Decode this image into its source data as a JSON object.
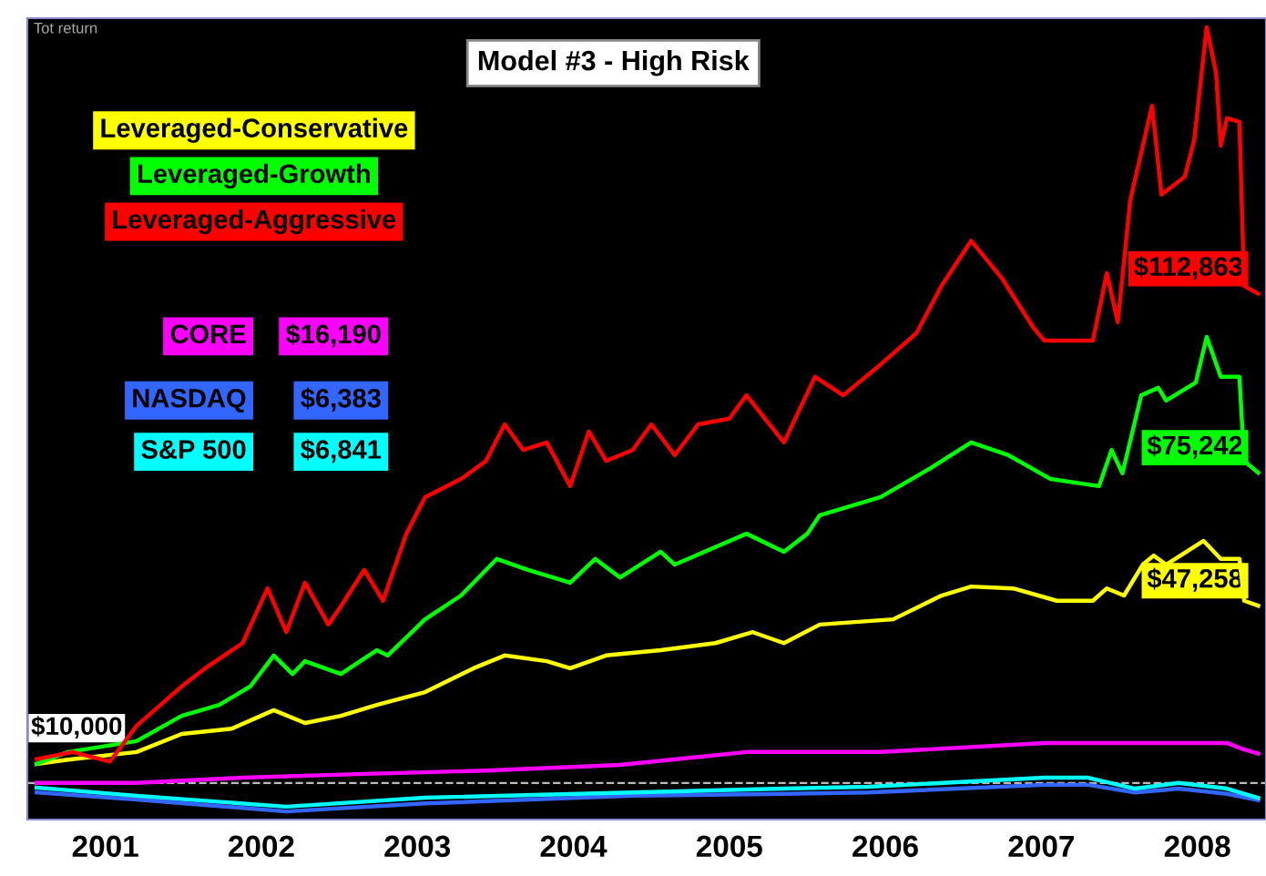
{
  "chart_data": {
    "type": "line",
    "title": "Model #3 - High Risk",
    "annotations": [
      "Tot return",
      "$16,190",
      "$6,383",
      "$6,841"
    ],
    "xlim": [
      2001.0,
      2008.94
    ],
    "ylim": [
      2300,
      170800
    ],
    "tick_labels": "x",
    "legend": "top left",
    "grid": false,
    "marker": "none",
    "line_style": "solid",
    "xticks": [
      {
        "value": 2001.5,
        "label": "2001"
      },
      {
        "value": 2002.5,
        "label": "2002"
      },
      {
        "value": 2003.5,
        "label": "2003"
      },
      {
        "value": 2004.5,
        "label": "2004"
      },
      {
        "value": 2005.5,
        "label": "2005"
      },
      {
        "value": 2006.5,
        "label": "2006"
      },
      {
        "value": 2007.5,
        "label": "2007"
      },
      {
        "value": 2008.5,
        "label": "2008"
      }
    ],
    "ref_lines": [
      {
        "axis": "y",
        "value": 10000,
        "label": "$10,000",
        "color": "#bbbbbb",
        "line_style": "dashed"
      }
    ],
    "series": [
      {
        "name": "Leveraged-Conservative",
        "color": "#ffff00",
        "x": [
          2001.06,
          2001.26,
          2001.7,
          2001.99,
          2002.31,
          2002.58,
          2002.78,
          2003.01,
          2003.24,
          2003.55,
          2003.86,
          2004.06,
          2004.33,
          2004.48,
          2004.71,
          2005.06,
          2005.41,
          2005.65,
          2005.85,
          2006.08,
          2006.55,
          2006.86,
          2007.05,
          2007.32,
          2007.6,
          2007.83,
          2007.92,
          2008.03,
          2008.15,
          2008.22,
          2008.3,
          2008.54,
          2008.65,
          2008.77,
          2008.8,
          2008.89
        ],
        "values": [
          14000,
          14900,
          16500,
          20300,
          21400,
          25300,
          22600,
          24100,
          26400,
          29100,
          34100,
          36800,
          35600,
          34100,
          36800,
          37900,
          39400,
          41700,
          39400,
          43300,
          44400,
          49400,
          51300,
          50900,
          48300,
          48300,
          50900,
          49400,
          55900,
          57800,
          55900,
          60900,
          57100,
          57100,
          48300,
          47258
        ],
        "value_labels": [
          null,
          null,
          null,
          null,
          null,
          null,
          null,
          null,
          null,
          null,
          null,
          null,
          null,
          null,
          null,
          null,
          null,
          null,
          null,
          null,
          null,
          null,
          null,
          null,
          null,
          null,
          null,
          null,
          null,
          null,
          null,
          null,
          null,
          null,
          null,
          "$47,258"
        ]
      },
      {
        "name": "Leveraged-Growth",
        "color": "#00ff00",
        "x": [
          2001.06,
          2001.26,
          2001.7,
          2001.99,
          2002.23,
          2002.43,
          2002.58,
          2002.7,
          2002.78,
          2003.01,
          2003.24,
          2003.31,
          2003.55,
          2003.78,
          2004.01,
          2004.21,
          2004.48,
          2004.64,
          2004.8,
          2005.06,
          2005.15,
          2005.61,
          2005.85,
          2006.0,
          2006.08,
          2006.47,
          2006.79,
          2007.05,
          2007.29,
          2007.56,
          2007.87,
          2007.95,
          2008.02,
          2008.14,
          2008.25,
          2008.3,
          2008.49,
          2008.56,
          2008.65,
          2008.77,
          2008.8,
          2008.89
        ],
        "values": [
          14000,
          16500,
          18800,
          24100,
          26400,
          30300,
          36800,
          32900,
          35600,
          32900,
          37900,
          36800,
          44400,
          49400,
          57100,
          54800,
          52100,
          57100,
          53200,
          58600,
          55900,
          62400,
          58600,
          62400,
          66300,
          70100,
          76200,
          81600,
          78900,
          73900,
          72400,
          80000,
          75100,
          91500,
          93100,
          90400,
          94200,
          103800,
          95400,
          95400,
          77700,
          75242
        ],
        "value_labels": [
          null,
          null,
          null,
          null,
          null,
          null,
          null,
          null,
          null,
          null,
          null,
          null,
          null,
          null,
          null,
          null,
          null,
          null,
          null,
          null,
          null,
          null,
          null,
          null,
          null,
          null,
          null,
          null,
          null,
          null,
          null,
          null,
          null,
          null,
          null,
          null,
          null,
          null,
          null,
          null,
          null,
          "$75,242"
        ]
      },
      {
        "name": "Leveraged-Aggressive",
        "color": "#ff0000",
        "x": [
          2001.06,
          2001.29,
          2001.53,
          2001.7,
          2001.99,
          2002.14,
          2002.38,
          2002.54,
          2002.66,
          2002.78,
          2002.93,
          2003.01,
          2003.16,
          2003.28,
          2003.43,
          2003.55,
          2003.78,
          2003.94,
          2004.06,
          2004.18,
          2004.33,
          2004.48,
          2004.6,
          2004.71,
          2004.88,
          2005.0,
          2005.15,
          2005.3,
          2005.5,
          2005.61,
          2005.85,
          2006.05,
          2006.23,
          2006.47,
          2006.7,
          2006.86,
          2007.05,
          2007.25,
          2007.45,
          2007.52,
          2007.83,
          2007.92,
          2007.99,
          2008.07,
          2008.21,
          2008.27,
          2008.42,
          2008.48,
          2008.56,
          2008.62,
          2008.65,
          2008.69,
          2008.77,
          2008.8,
          2008.89
        ],
        "values": [
          15000,
          16500,
          14500,
          22000,
          30300,
          34100,
          39400,
          50900,
          41700,
          52100,
          43300,
          47100,
          54800,
          48300,
          62400,
          70100,
          73900,
          77700,
          85400,
          80000,
          81600,
          72400,
          83900,
          77700,
          80000,
          85400,
          78900,
          85400,
          86600,
          91500,
          81600,
          95400,
          91500,
          98000,
          104600,
          114500,
          124000,
          116000,
          105700,
          103000,
          103000,
          117200,
          106900,
          132500,
          152400,
          133700,
          137500,
          145200,
          168900,
          159300,
          144000,
          149800,
          149000,
          114500,
          112863
        ],
        "value_labels": [
          null,
          null,
          null,
          null,
          null,
          null,
          null,
          null,
          null,
          null,
          null,
          null,
          null,
          null,
          null,
          null,
          null,
          null,
          null,
          null,
          null,
          null,
          null,
          null,
          null,
          null,
          null,
          null,
          null,
          null,
          null,
          null,
          null,
          null,
          null,
          null,
          null,
          null,
          null,
          null,
          null,
          null,
          null,
          null,
          null,
          null,
          null,
          null,
          null,
          null,
          null,
          null,
          null,
          null,
          "$112,863"
        ]
      },
      {
        "name": "CORE",
        "color": "#ff00ff",
        "x": [
          2001.06,
          2001.7,
          2002.38,
          2003.16,
          2003.94,
          2004.8,
          2005.61,
          2006.47,
          2007.52,
          2008.69,
          2008.8,
          2008.89
        ],
        "values": [
          10000,
          10000,
          11100,
          11900,
          12600,
          13800,
          16500,
          16500,
          18400,
          18400,
          17000,
          16190
        ]
      },
      {
        "name": "NASDAQ",
        "color": "#3366ff",
        "x": [
          2001.06,
          2001.7,
          2002.66,
          2003.55,
          2004.88,
          2005.85,
          2006.39,
          2007.52,
          2007.8,
          2008.1,
          2008.38,
          2008.69,
          2008.89
        ],
        "values": [
          8000,
          6500,
          4000,
          5700,
          7300,
          7700,
          8000,
          9600,
          9600,
          8000,
          8800,
          7700,
          6383
        ]
      },
      {
        "name": "S&P 500",
        "color": "#00ffff",
        "x": [
          2001.06,
          2001.7,
          2002.66,
          2003.55,
          2004.88,
          2005.85,
          2006.39,
          2007.52,
          2007.8,
          2008.1,
          2008.38,
          2008.69,
          2008.89
        ],
        "values": [
          9000,
          7300,
          5000,
          6900,
          8000,
          8800,
          9200,
          11100,
          11100,
          8800,
          10000,
          8800,
          6841
        ]
      }
    ]
  }
}
